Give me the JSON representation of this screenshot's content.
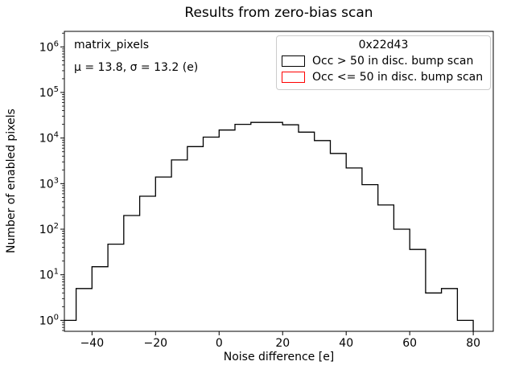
{
  "title": "Results from zero-bias scan",
  "axes": {
    "xlabel": "Noise difference [e]",
    "ylabel": "Number of enabled pixels",
    "x_ticks": [
      -40,
      -20,
      0,
      20,
      40,
      60,
      80
    ],
    "y_tick_exponents": [
      0,
      1,
      2,
      3,
      4,
      5,
      6
    ]
  },
  "annotations": {
    "dataset": "matrix_pixels",
    "stats_text": "μ = 13.8, σ = 13.2 (e)"
  },
  "legend": {
    "title": "0x22d43",
    "entries": [
      {
        "label": "Occ > 50 in disc. bump scan",
        "color": "#000000"
      },
      {
        "label": "Occ <= 50 in disc. bump scan",
        "color": "#ff0000"
      }
    ]
  },
  "chart_data": {
    "type": "bar",
    "subtype": "step-histogram",
    "title": "Results from zero-bias scan",
    "xlabel": "Noise difference [e]",
    "ylabel": "Number of enabled pixels",
    "yscale": "log",
    "grid": false,
    "legend_position": "upper right",
    "xlim": [
      -48.7,
      86.3
    ],
    "ylim": [
      0.575,
      2190000
    ],
    "stats": {
      "mu": 13.8,
      "sigma": 13.2,
      "unit": "e"
    },
    "bin_edges": [
      -50,
      -45,
      -40,
      -35,
      -30,
      -25,
      -20,
      -15,
      -10,
      -5,
      0,
      5,
      10,
      15,
      20,
      25,
      30,
      35,
      40,
      45,
      50,
      55,
      60,
      65,
      70,
      75,
      80
    ],
    "series": [
      {
        "name": "Occ > 50 in disc. bump scan",
        "color": "#000000",
        "counts": [
          1,
          5,
          15,
          47,
          200,
          530,
          1400,
          3300,
          6500,
          10500,
          15000,
          20000,
          22000,
          22000,
          19500,
          13500,
          8800,
          4600,
          2200,
          950,
          340,
          100,
          36,
          4,
          5,
          1
        ]
      },
      {
        "name": "Occ <= 50 in disc. bump scan",
        "color": "#ff0000",
        "counts": [
          0,
          0,
          0,
          0,
          0,
          0,
          0,
          0,
          0,
          0,
          0,
          0,
          0,
          0,
          0,
          0,
          0,
          0,
          0,
          0,
          0,
          0,
          0,
          0,
          0,
          0
        ]
      }
    ]
  }
}
